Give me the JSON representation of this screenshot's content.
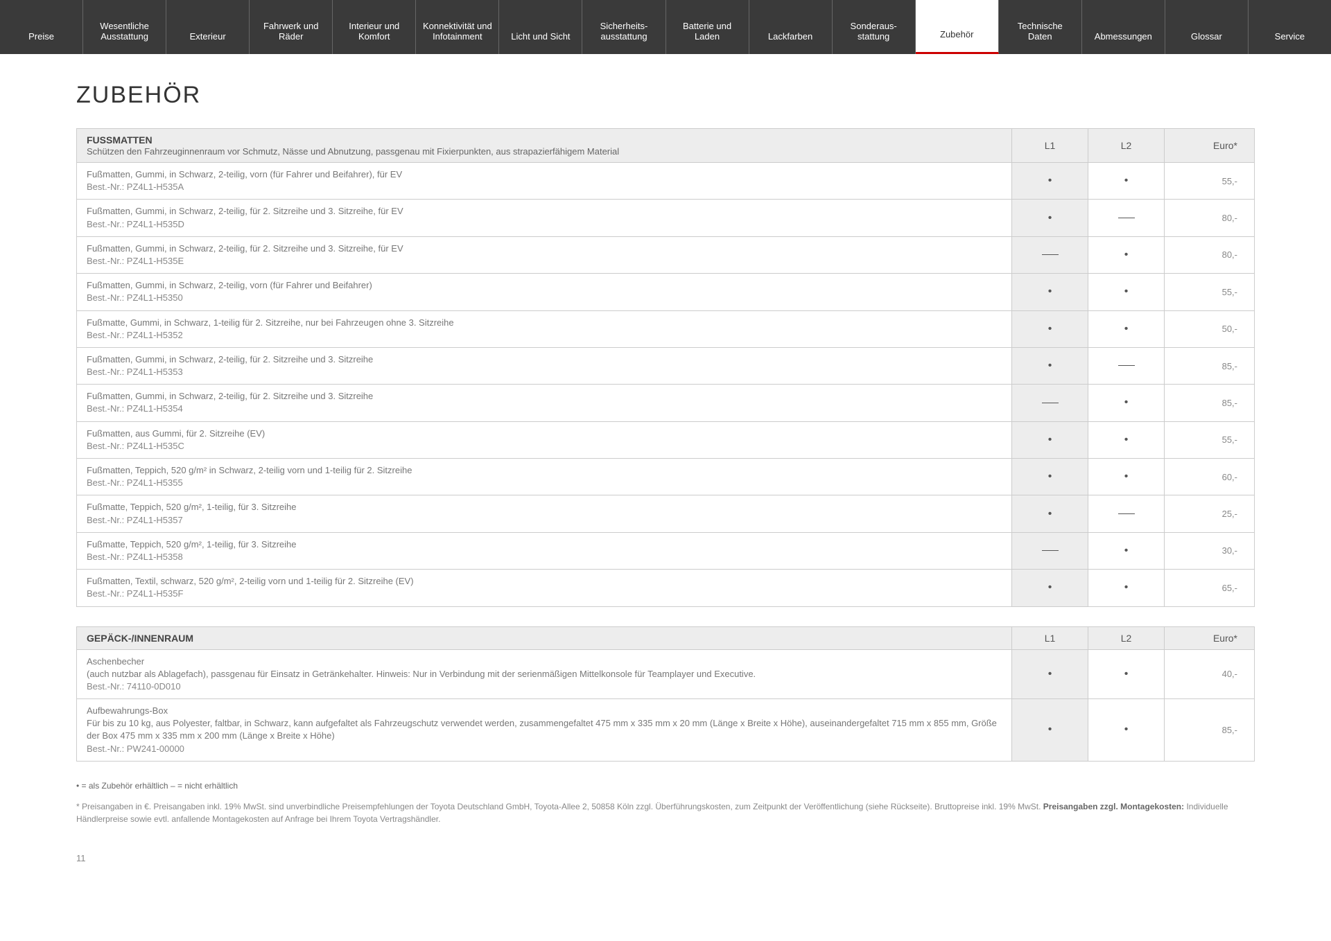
{
  "nav": {
    "items": [
      {
        "label": "Preise",
        "active": false
      },
      {
        "label": "Wesentliche Ausstattung",
        "active": false
      },
      {
        "label": "Exterieur",
        "active": false
      },
      {
        "label": "Fahrwerk und Räder",
        "active": false
      },
      {
        "label": "Interieur und Komfort",
        "active": false
      },
      {
        "label": "Konnektivität und Infotainment",
        "active": false
      },
      {
        "label": "Licht und Sicht",
        "active": false
      },
      {
        "label": "Sicherheits-ausstattung",
        "active": false
      },
      {
        "label": "Batterie und Laden",
        "active": false
      },
      {
        "label": "Lackfarben",
        "active": false
      },
      {
        "label": "Sonderaus-stattung",
        "active": false
      },
      {
        "label": "Zubehör",
        "active": true
      },
      {
        "label": "Technische Daten",
        "active": false
      },
      {
        "label": "Abmessungen",
        "active": false
      },
      {
        "label": "Glossar",
        "active": false
      },
      {
        "label": "Service",
        "active": false
      }
    ]
  },
  "page_title": "ZUBEHÖR",
  "columns": {
    "c1": "L1",
    "c2": "L2",
    "c3": "Euro*"
  },
  "table1": {
    "header_title": "FUSSMATTEN",
    "header_sub": "Schützen den Fahrzeuginnenraum vor Schmutz, Nässe und Abnutzung, passgenau mit Fixierpunkten, aus strapazierfähigem Material",
    "rows": [
      {
        "desc": "Fußmatten, Gummi, in Schwarz, 2-teilig, vorn (für Fahrer und Beifahrer), für EV",
        "part": "Best.-Nr.: PZ4L1-H535A",
        "l1": "dot",
        "l2": "dot",
        "price": "55,-"
      },
      {
        "desc": "Fußmatten, Gummi, in Schwarz, 2-teilig, für 2. Sitzreihe und 3. Sitzreihe, für EV",
        "part": "Best.-Nr.: PZ4L1-H535D",
        "l1": "dot",
        "l2": "dash",
        "price": "80,-"
      },
      {
        "desc": "Fußmatten, Gummi, in Schwarz, 2-teilig, für 2. Sitzreihe und 3. Sitzreihe, für EV",
        "part": "Best.-Nr.: PZ4L1-H535E",
        "l1": "dash",
        "l2": "dot",
        "price": "80,-"
      },
      {
        "desc": "Fußmatten, Gummi, in Schwarz, 2-teilig, vorn (für Fahrer und Beifahrer)",
        "part": "Best.-Nr.: PZ4L1-H5350",
        "l1": "dot",
        "l2": "dot",
        "price": "55,-"
      },
      {
        "desc": "Fußmatte, Gummi, in Schwarz, 1-teilig für 2. Sitzreihe, nur bei Fahrzeugen ohne 3. Sitzreihe",
        "part": "Best.-Nr.: PZ4L1-H5352",
        "l1": "dot",
        "l2": "dot",
        "price": "50,-"
      },
      {
        "desc": "Fußmatten, Gummi, in Schwarz, 2-teilig, für 2. Sitzreihe und 3. Sitzreihe",
        "part": "Best.-Nr.: PZ4L1-H5353",
        "l1": "dot",
        "l2": "dash",
        "price": "85,-"
      },
      {
        "desc": "Fußmatten, Gummi, in Schwarz, 2-teilig, für 2. Sitzreihe und 3. Sitzreihe",
        "part": "Best.-Nr.: PZ4L1-H5354",
        "l1": "dash",
        "l2": "dot",
        "price": "85,-"
      },
      {
        "desc": "Fußmatten, aus Gummi, für 2. Sitzreihe (EV)",
        "part": "Best.-Nr.: PZ4L1-H535C",
        "l1": "dot",
        "l2": "dot",
        "price": "55,-"
      },
      {
        "desc": "Fußmatten, Teppich, 520 g/m² in Schwarz, 2-teilig vorn und 1-teilig für 2. Sitzreihe",
        "part": "Best.-Nr.: PZ4L1-H5355",
        "l1": "dot",
        "l2": "dot",
        "price": "60,-"
      },
      {
        "desc": "Fußmatte, Teppich, 520 g/m², 1-teilig, für 3. Sitzreihe",
        "part": "Best.-Nr.: PZ4L1-H5357",
        "l1": "dot",
        "l2": "dash",
        "price": "25,-"
      },
      {
        "desc": "Fußmatte, Teppich, 520 g/m², 1-teilig, für 3. Sitzreihe",
        "part": "Best.-Nr.: PZ4L1-H5358",
        "l1": "dash",
        "l2": "dot",
        "price": "30,-"
      },
      {
        "desc": "Fußmatten, Textil, schwarz, 520 g/m², 2-teilig vorn und 1-teilig für 2. Sitzreihe (EV)",
        "part": "Best.-Nr.: PZ4L1-H535F",
        "l1": "dot",
        "l2": "dot",
        "price": "65,-"
      }
    ]
  },
  "table2": {
    "header_title": "GEPÄCK-/INNENRAUM",
    "header_sub": "",
    "rows": [
      {
        "desc": "Aschenbecher\n(auch nutzbar als Ablagefach), passgenau für Einsatz in Getränkehalter. Hinweis: Nur in Verbindung mit der serienmäßigen Mittelkonsole für Teamplayer und Executive.",
        "part": "Best.-Nr.: 74110-0D010",
        "l1": "dot",
        "l2": "dot",
        "price": "40,-"
      },
      {
        "desc": "Aufbewahrungs-Box\nFür bis zu 10 kg, aus Polyester, faltbar, in Schwarz, kann aufgefaltet als Fahrzeugschutz verwendet werden, zusammengefaltet 475 mm x 335 mm x 20 mm (Länge x Breite x Höhe), auseinandergefaltet 715 mm x 855 mm, Größe der Box 475 mm x 335 mm x 200 mm (Länge x Breite x Höhe)",
        "part": "Best.-Nr.: PW241-00000",
        "l1": "dot",
        "l2": "dot",
        "price": "85,-"
      }
    ]
  },
  "legend": "• = als Zubehör erhältlich    – = nicht erhältlich",
  "footnote_pre": "* Preisangaben in €. Preisangaben inkl. 19% MwSt. sind unverbindliche Preisempfehlungen der Toyota Deutschland GmbH, Toyota-Allee 2, 50858 Köln zzgl. Überführungskosten, zum Zeitpunkt der Veröffentlichung (siehe Rückseite). Bruttopreise inkl. 19% MwSt. ",
  "footnote_bold": "Preisangaben zzgl. Montagekosten:",
  "footnote_post": " Individuelle Händlerpreise sowie evtl. anfallende Montagekosten auf Anfrage bei Ihrem Toyota Vertragshändler.",
  "page_number": "11"
}
